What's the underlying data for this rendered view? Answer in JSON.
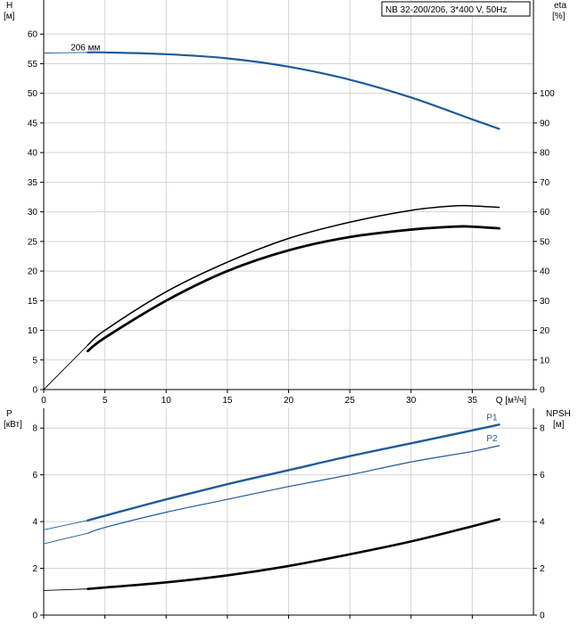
{
  "chart_data": [
    {
      "type": "line",
      "title": "NB 32-200/206, 3*400 V, 50Hz",
      "xlabel": "Q [м³/ч]",
      "xlim": [
        0,
        40
      ],
      "x_ticks": [
        0,
        5,
        10,
        15,
        20,
        25,
        30,
        35
      ],
      "ylabel_left": [
        "H",
        "[м]"
      ],
      "ylim_left": [
        0,
        65
      ],
      "y_ticks_left": [
        0,
        5,
        10,
        15,
        20,
        25,
        30,
        35,
        40,
        45,
        50,
        55,
        60
      ],
      "ylabel_right": [
        "eta",
        "[%]"
      ],
      "ylim_right": [
        0,
        130
      ],
      "y_ticks_right": [
        0,
        10,
        20,
        30,
        40,
        50,
        60,
        70,
        80,
        90,
        100
      ],
      "grid": true,
      "series": [
        {
          "name": "206 мм",
          "axis": "left",
          "color": "#1f5b99",
          "x": [
            0,
            3.6,
            5,
            10,
            15,
            20,
            25,
            30,
            35,
            37.2
          ],
          "y": [
            56.8,
            56.9,
            56.9,
            56.6,
            55.9,
            54.5,
            52.3,
            49.3,
            45.6,
            44.0
          ]
        },
        {
          "name": "",
          "axis": "right",
          "color": "#000000",
          "x": [
            0,
            3.6,
            5,
            10,
            15,
            20,
            25,
            30,
            33.5,
            35,
            37.2
          ],
          "y": [
            0,
            15,
            20,
            33,
            43,
            51,
            56.5,
            60.5,
            62,
            62,
            61.5
          ]
        },
        {
          "name": "",
          "axis": "right",
          "color": "#000000",
          "x": [
            3.6,
            5,
            10,
            15,
            20,
            25,
            30,
            33.5,
            35,
            37.2
          ],
          "y": [
            13,
            17.5,
            30,
            40,
            47,
            51.5,
            54,
            55,
            55,
            54.4
          ]
        }
      ]
    },
    {
      "type": "line",
      "xlabel": "",
      "xlim": [
        0,
        40
      ],
      "ylabel_left": [
        "P",
        "[кВт]"
      ],
      "ylim_left": [
        0,
        9
      ],
      "y_ticks_left": [
        0,
        2,
        4,
        6,
        8
      ],
      "ylabel_right": [
        "NPSH",
        "[м]"
      ],
      "ylim_right": [
        0,
        9
      ],
      "y_ticks_right": [
        0,
        2,
        4,
        6,
        8
      ],
      "grid": true,
      "series": [
        {
          "name": "P1",
          "axis": "left",
          "color": "#1f5b99",
          "x": [
            0,
            3.6,
            5,
            10,
            15,
            20,
            25,
            30,
            35,
            37.2
          ],
          "y": [
            3.65,
            4.05,
            4.25,
            4.95,
            5.6,
            6.2,
            6.8,
            7.35,
            7.9,
            8.15
          ]
        },
        {
          "name": "P2",
          "axis": "left",
          "color": "#1f5b99",
          "x": [
            0,
            3.6,
            5,
            10,
            15,
            20,
            25,
            30,
            35,
            37.2
          ],
          "y": [
            3.05,
            3.5,
            3.75,
            4.4,
            4.95,
            5.5,
            6.0,
            6.55,
            7.0,
            7.25
          ]
        },
        {
          "name": "",
          "axis": "right",
          "color": "#000000",
          "x": [
            0,
            3.6,
            5,
            10,
            15,
            20,
            25,
            30,
            35,
            37.2
          ],
          "y": [
            1.05,
            1.12,
            1.18,
            1.4,
            1.7,
            2.1,
            2.6,
            3.15,
            3.8,
            4.1
          ]
        }
      ]
    }
  ]
}
